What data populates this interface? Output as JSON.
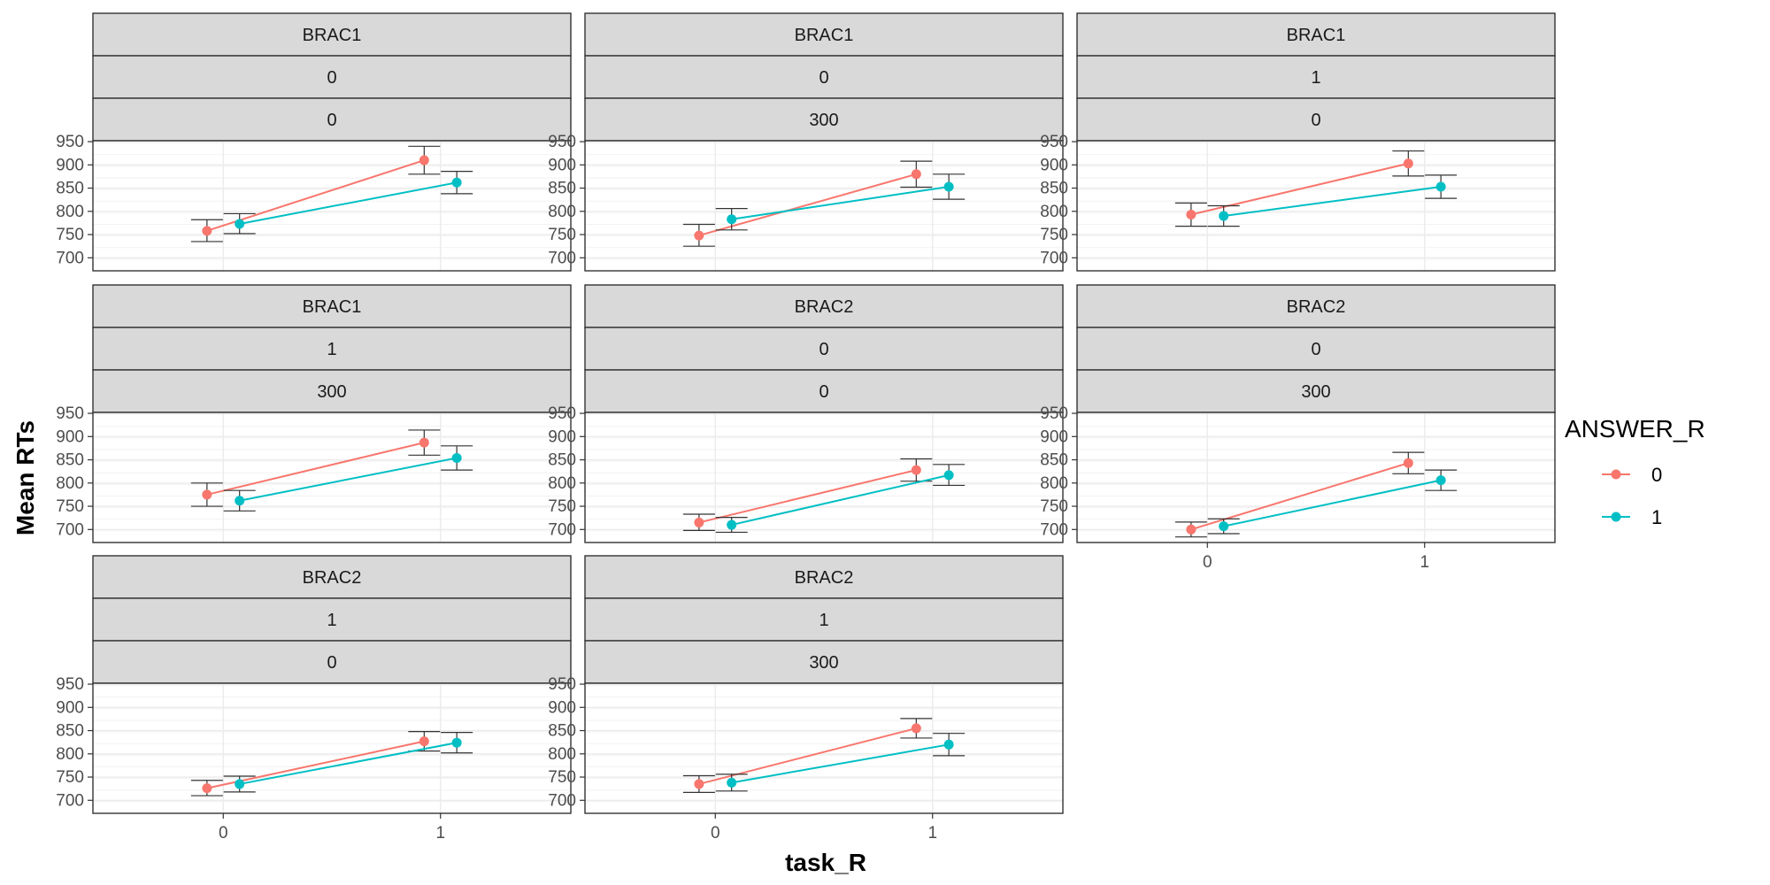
{
  "chart_data": {
    "type": "line",
    "x_label": "task_R",
    "y_label": "Mean RTs",
    "x_ticks": [
      "0",
      "1"
    ],
    "y_ticks": [
      700,
      750,
      800,
      850,
      900,
      950
    ],
    "ylim": [
      672,
      952
    ],
    "legend": {
      "title": "ANSWER_R",
      "position": "right",
      "entries": [
        {
          "label": "0",
          "color": "#F8766D"
        },
        {
          "label": "1",
          "color": "#00BFC4"
        }
      ]
    },
    "panels": [
      {
        "strips": [
          "BRAC1",
          "0",
          "0"
        ],
        "series": [
          {
            "answer": "0",
            "points": [
              {
                "x": "0",
                "y": 758,
                "lo": 735,
                "hi": 782
              },
              {
                "x": "1",
                "y": 910,
                "lo": 880,
                "hi": 940
              }
            ]
          },
          {
            "answer": "1",
            "points": [
              {
                "x": "0",
                "y": 773,
                "lo": 752,
                "hi": 795
              },
              {
                "x": "1",
                "y": 862,
                "lo": 838,
                "hi": 886
              }
            ]
          }
        ]
      },
      {
        "strips": [
          "BRAC1",
          "0",
          "300"
        ],
        "series": [
          {
            "answer": "0",
            "points": [
              {
                "x": "0",
                "y": 748,
                "lo": 725,
                "hi": 772
              },
              {
                "x": "1",
                "y": 880,
                "lo": 852,
                "hi": 908
              }
            ]
          },
          {
            "answer": "1",
            "points": [
              {
                "x": "0",
                "y": 783,
                "lo": 760,
                "hi": 806
              },
              {
                "x": "1",
                "y": 853,
                "lo": 826,
                "hi": 880
              }
            ]
          }
        ]
      },
      {
        "strips": [
          "BRAC1",
          "1",
          "0"
        ],
        "series": [
          {
            "answer": "0",
            "points": [
              {
                "x": "0",
                "y": 793,
                "lo": 768,
                "hi": 818
              },
              {
                "x": "1",
                "y": 903,
                "lo": 876,
                "hi": 930
              }
            ]
          },
          {
            "answer": "1",
            "points": [
              {
                "x": "0",
                "y": 790,
                "lo": 768,
                "hi": 812
              },
              {
                "x": "1",
                "y": 853,
                "lo": 828,
                "hi": 878
              }
            ]
          }
        ]
      },
      {
        "strips": [
          "BRAC1",
          "1",
          "300"
        ],
        "series": [
          {
            "answer": "0",
            "points": [
              {
                "x": "0",
                "y": 775,
                "lo": 750,
                "hi": 800
              },
              {
                "x": "1",
                "y": 887,
                "lo": 860,
                "hi": 914
              }
            ]
          },
          {
            "answer": "1",
            "points": [
              {
                "x": "0",
                "y": 762,
                "lo": 740,
                "hi": 784
              },
              {
                "x": "1",
                "y": 854,
                "lo": 828,
                "hi": 880
              }
            ]
          }
        ]
      },
      {
        "strips": [
          "BRAC2",
          "0",
          "0"
        ],
        "series": [
          {
            "answer": "0",
            "points": [
              {
                "x": "0",
                "y": 715,
                "lo": 698,
                "hi": 733
              },
              {
                "x": "1",
                "y": 828,
                "lo": 804,
                "hi": 852
              }
            ]
          },
          {
            "answer": "1",
            "points": [
              {
                "x": "0",
                "y": 710,
                "lo": 694,
                "hi": 726
              },
              {
                "x": "1",
                "y": 817,
                "lo": 795,
                "hi": 840
              }
            ]
          }
        ]
      },
      {
        "strips": [
          "BRAC2",
          "0",
          "300"
        ],
        "series": [
          {
            "answer": "0",
            "points": [
              {
                "x": "0",
                "y": 700,
                "lo": 684,
                "hi": 716
              },
              {
                "x": "1",
                "y": 843,
                "lo": 820,
                "hi": 866
              }
            ]
          },
          {
            "answer": "1",
            "points": [
              {
                "x": "0",
                "y": 707,
                "lo": 691,
                "hi": 723
              },
              {
                "x": "1",
                "y": 806,
                "lo": 784,
                "hi": 828
              }
            ]
          }
        ]
      },
      {
        "strips": [
          "BRAC2",
          "1",
          "0"
        ],
        "series": [
          {
            "answer": "0",
            "points": [
              {
                "x": "0",
                "y": 726,
                "lo": 710,
                "hi": 743
              },
              {
                "x": "1",
                "y": 827,
                "lo": 806,
                "hi": 848
              }
            ]
          },
          {
            "answer": "1",
            "points": [
              {
                "x": "0",
                "y": 735,
                "lo": 718,
                "hi": 752
              },
              {
                "x": "1",
                "y": 824,
                "lo": 802,
                "hi": 846
              }
            ]
          }
        ]
      },
      {
        "strips": [
          "BRAC2",
          "1",
          "300"
        ],
        "series": [
          {
            "answer": "0",
            "points": [
              {
                "x": "0",
                "y": 735,
                "lo": 717,
                "hi": 753
              },
              {
                "x": "1",
                "y": 855,
                "lo": 834,
                "hi": 876
              }
            ]
          },
          {
            "answer": "1",
            "points": [
              {
                "x": "0",
                "y": 738,
                "lo": 720,
                "hi": 756
              },
              {
                "x": "1",
                "y": 820,
                "lo": 796,
                "hi": 844
              }
            ]
          }
        ]
      }
    ]
  }
}
